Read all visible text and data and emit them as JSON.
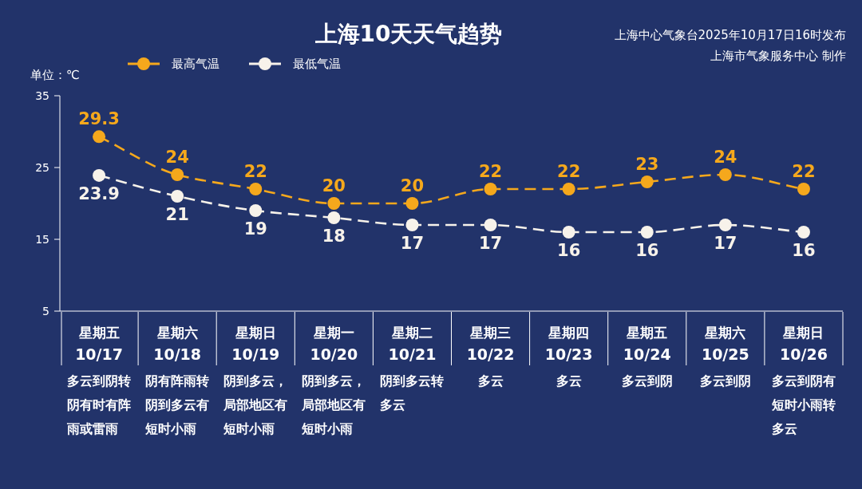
{
  "chart_data": {
    "type": "line",
    "title": "上海10天天气趋势",
    "ylabel": "单位：℃",
    "annotations": [
      "上海中心气象台2025年10月17日16时发布",
      "上海市气象服务中心 制作"
    ],
    "categories": [
      "星期五\n10/17\n多云到阴转阴有时有阵雨或雷雨",
      "星期六\n10/18\n阴有阵雨转阴到多云有短时小雨",
      "星期日\n10/19\n阴到多云，局部地区有短时小雨",
      "星期一\n10/20\n阴到多云，局部地区有短时小雨",
      "星期二\n10/21\n阴到多云转多云",
      "星期三\n10/22\n多云",
      "星期四\n10/23\n多云",
      "星期五\n10/24\n多云到阴",
      "星期六\n10/25\n多云到阴",
      "星期日\n10/26\n多云到阴有短时小雨转多云"
    ],
    "series": [
      {
        "name": "最高气温",
        "color": "#f5a81c",
        "values": [
          29.3,
          24,
          22,
          20,
          20,
          22,
          22,
          23,
          24,
          22
        ]
      },
      {
        "name": "最低气温",
        "color": "#f7f2ea",
        "values": [
          23.9,
          21,
          19,
          18,
          17,
          17,
          16,
          16,
          17,
          16
        ]
      }
    ],
    "ylim": [
      5,
      35
    ],
    "yticks": [
      5,
      15,
      25,
      35
    ],
    "legend": "top left",
    "marker": "circle",
    "line_style": "dashed",
    "data_labels": true
  }
}
